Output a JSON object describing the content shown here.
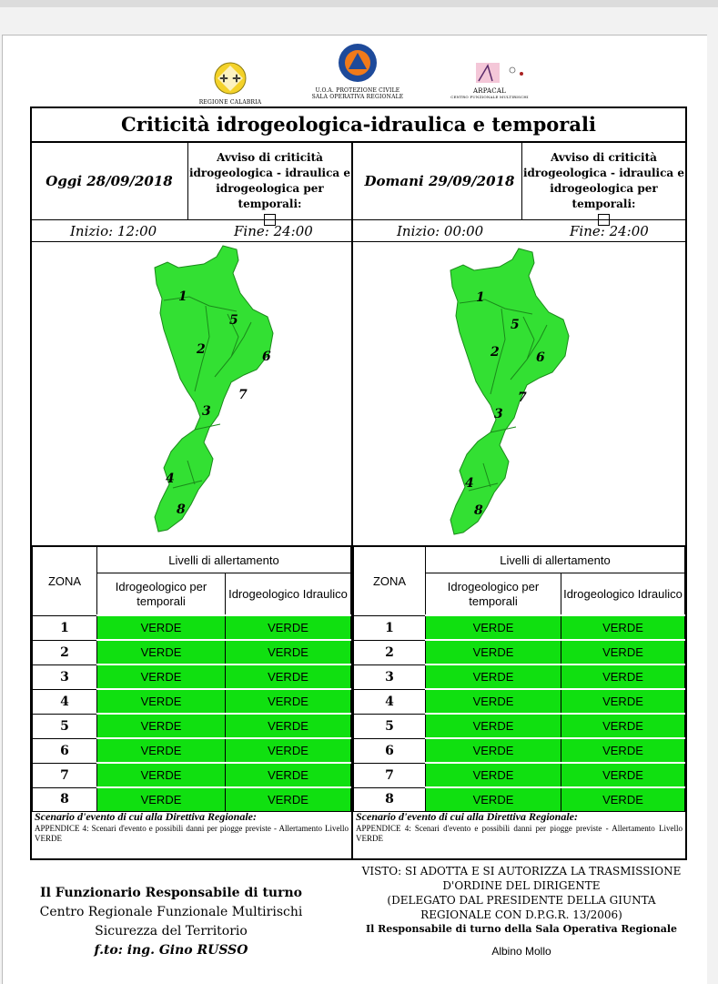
{
  "title": "Criticità idrogeologica-idraulica e temporali",
  "logos": {
    "regione": "REGIONE CALABRIA",
    "protezione_line1": "U.O.A. PROTEZIONE CIVILE",
    "protezione_line2": "SALA OPERATIVA REGIONALE",
    "arpacal": "ARPACAL",
    "arpacal_sub": "CENTRO FUNZIONALE MULTIRISCHI"
  },
  "today": {
    "date": "Oggi 28/09/2018",
    "avviso": "Avviso di criticità idrogeologica - idraulica e idrogeologica per temporali:",
    "inizio": "Inizio: 12:00",
    "fine": "Fine: 24:00"
  },
  "tomorrow": {
    "date": "Domani 29/09/2018",
    "avviso": "Avviso di criticità idrogeologica - idraulica e idrogeologica per temporali:",
    "inizio": "Inizio: 00:00",
    "fine": "Fine: 24:00"
  },
  "table": {
    "zona": "ZONA",
    "livelli": "Livelli di allertamento",
    "col1": "Idrogeologico per temporali",
    "col2": "Idrogeologico Idraulico",
    "rows": [
      {
        "zone": "1",
        "a": "VERDE",
        "b": "VERDE"
      },
      {
        "zone": "2",
        "a": "VERDE",
        "b": "VERDE"
      },
      {
        "zone": "3",
        "a": "VERDE",
        "b": "VERDE"
      },
      {
        "zone": "4",
        "a": "VERDE",
        "b": "VERDE"
      },
      {
        "zone": "5",
        "a": "VERDE",
        "b": "VERDE"
      },
      {
        "zone": "6",
        "a": "VERDE",
        "b": "VERDE"
      },
      {
        "zone": "7",
        "a": "VERDE",
        "b": "VERDE"
      },
      {
        "zone": "8",
        "a": "VERDE",
        "b": "VERDE"
      }
    ]
  },
  "map_zones": [
    "1",
    "2",
    "3",
    "4",
    "5",
    "6",
    "7",
    "8"
  ],
  "scenario": {
    "title": "Scenario d'evento di cui alla Direttiva Regionale:",
    "text": "APPENDICE 4: Scenari d'evento e possibili danni per piogge previste - Allertamento Livello VERDE"
  },
  "footer_left": {
    "line1": "Il Funzionario Responsabile di turno",
    "line2": "Centro Regionale Funzionale Multirischi",
    "line3": "Sicurezza del Territorio",
    "line4": "f.to: ing. Gino RUSSO"
  },
  "footer_right": {
    "line1": "VISTO: SI ADOTTA E SI AUTORIZZA LA TRASMISSIONE",
    "line2": "D'ORDINE DEL DIRIGENTE",
    "line3": "(DELEGATO DAL PRESIDENTE DELLA GIUNTA",
    "line4": "REGIONALE CON D.P.G.R. 13/2006)",
    "line5": "Il Responsabile di turno della Sala Operativa Regionale",
    "signer": "Albino Mollo"
  },
  "colors": {
    "verde": "#10e010",
    "map": "#33e033"
  }
}
